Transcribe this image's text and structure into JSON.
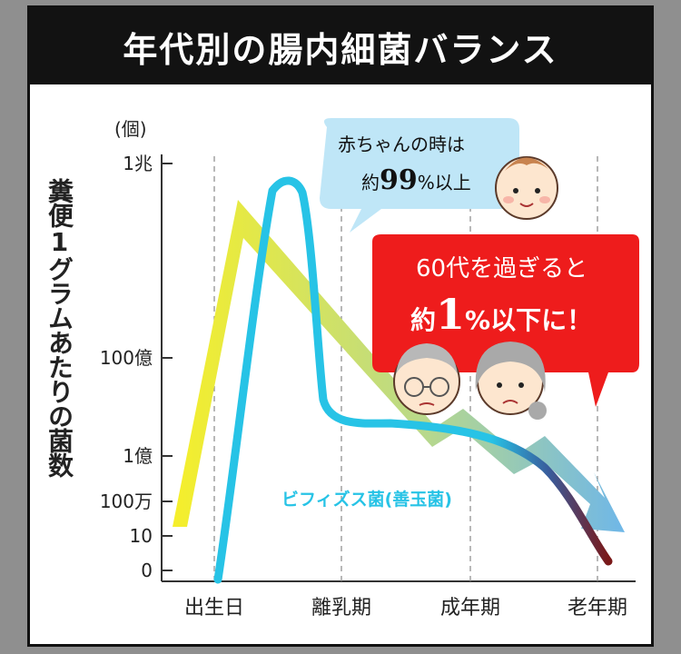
{
  "title": "年代別の腸内細菌バランス",
  "chart_data": {
    "type": "line",
    "ylabel": "糞便1グラムあたりの菌数",
    "y_unit": "(個)",
    "y_ticks": [
      "1兆",
      "100億",
      "1億",
      "100万",
      "10",
      "0"
    ],
    "x_categories": [
      "出生日",
      "離乳期",
      "成年期",
      "老年期"
    ],
    "series": [
      {
        "name": "",
        "color": "#f4f000",
        "style": "arrow-band"
      },
      {
        "name": "ビフィズス菌(善玉菌)",
        "color": "#27c3e6",
        "end_color": "#7a1818"
      }
    ],
    "annotations": {
      "baby_bubble": {
        "line1": "赤ちゃんの時は",
        "prefix": "約",
        "number": "99",
        "suffix": "%以上"
      },
      "senior_bubble": {
        "line1": "60代を過ぎると",
        "prefix": "約",
        "number": "1",
        "suffix": "%以下に！"
      }
    },
    "grid": "vertical-dashed",
    "colors": {
      "bubble_blue": "#bfe6f7",
      "bubble_red": "#ee1c1c"
    }
  }
}
